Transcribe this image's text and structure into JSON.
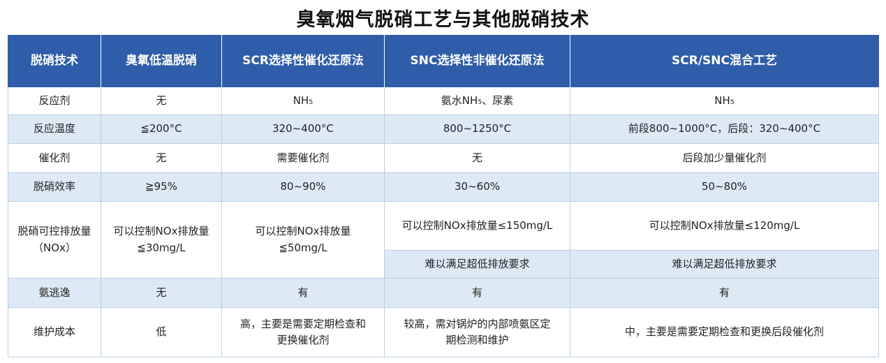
{
  "title": "臭氧烟气脱硝工艺与其他脱硝技术",
  "table": {
    "headers": [
      "脱硝技术",
      "臭氧低温脱硝",
      "SCR选择性催化还原法",
      "SNC选择性非催化还原法",
      "SCR/SNC混合工艺"
    ],
    "rows": {
      "reagent": [
        "反应剂",
        "无",
        "NH₅",
        "氨水NH₅、尿素",
        "NH₅"
      ],
      "temperature": [
        "反应温度",
        "≦200°C",
        "320~400°C",
        "800~1250°C",
        "前段800~1000°C，后段：320~400°C"
      ],
      "catalyst": [
        "催化剂",
        "无",
        "需要催化剂",
        "无",
        "后段加少量催化剂"
      ],
      "efficiency": [
        "脱硝效率",
        "≧95%",
        "80~90%",
        "30~60%",
        "50~80%"
      ],
      "emission": {
        "label_line1": "脱硝可控排放量",
        "label_line2": "（NOx）",
        "ozone_line1": "可以控制NOx排放量",
        "ozone_line2": "≦30mg/L",
        "scr_line1": "可以控制NOx排放量",
        "scr_line2": "≦50mg/L",
        "snc_top": "可以控制NOx排放量≤150mg/L",
        "snc_bottom": "难以满足超低排放要求",
        "mixed_top": "可以控制NOx排放量≤120mg/L",
        "mixed_bottom": "难以满足超低排放要求"
      },
      "ammonia_slip": [
        "氨逃逸",
        "无",
        "有",
        "有",
        "有"
      ],
      "maintenance": {
        "label": "维护成本",
        "ozone": "低",
        "scr_line1": "高，主要是需要定期检查和",
        "scr_line2": "更换催化剂",
        "snc_line1": "较高，需对锅炉的内部喷氨区定",
        "snc_line2": "期检测和维护",
        "mixed": "中，主要是需要定期检查和更换后段催化剂"
      }
    }
  },
  "colors": {
    "header_bg": "#2f5da9",
    "stripe_bg": "#dde9f5",
    "border": "#b9cfe3"
  }
}
